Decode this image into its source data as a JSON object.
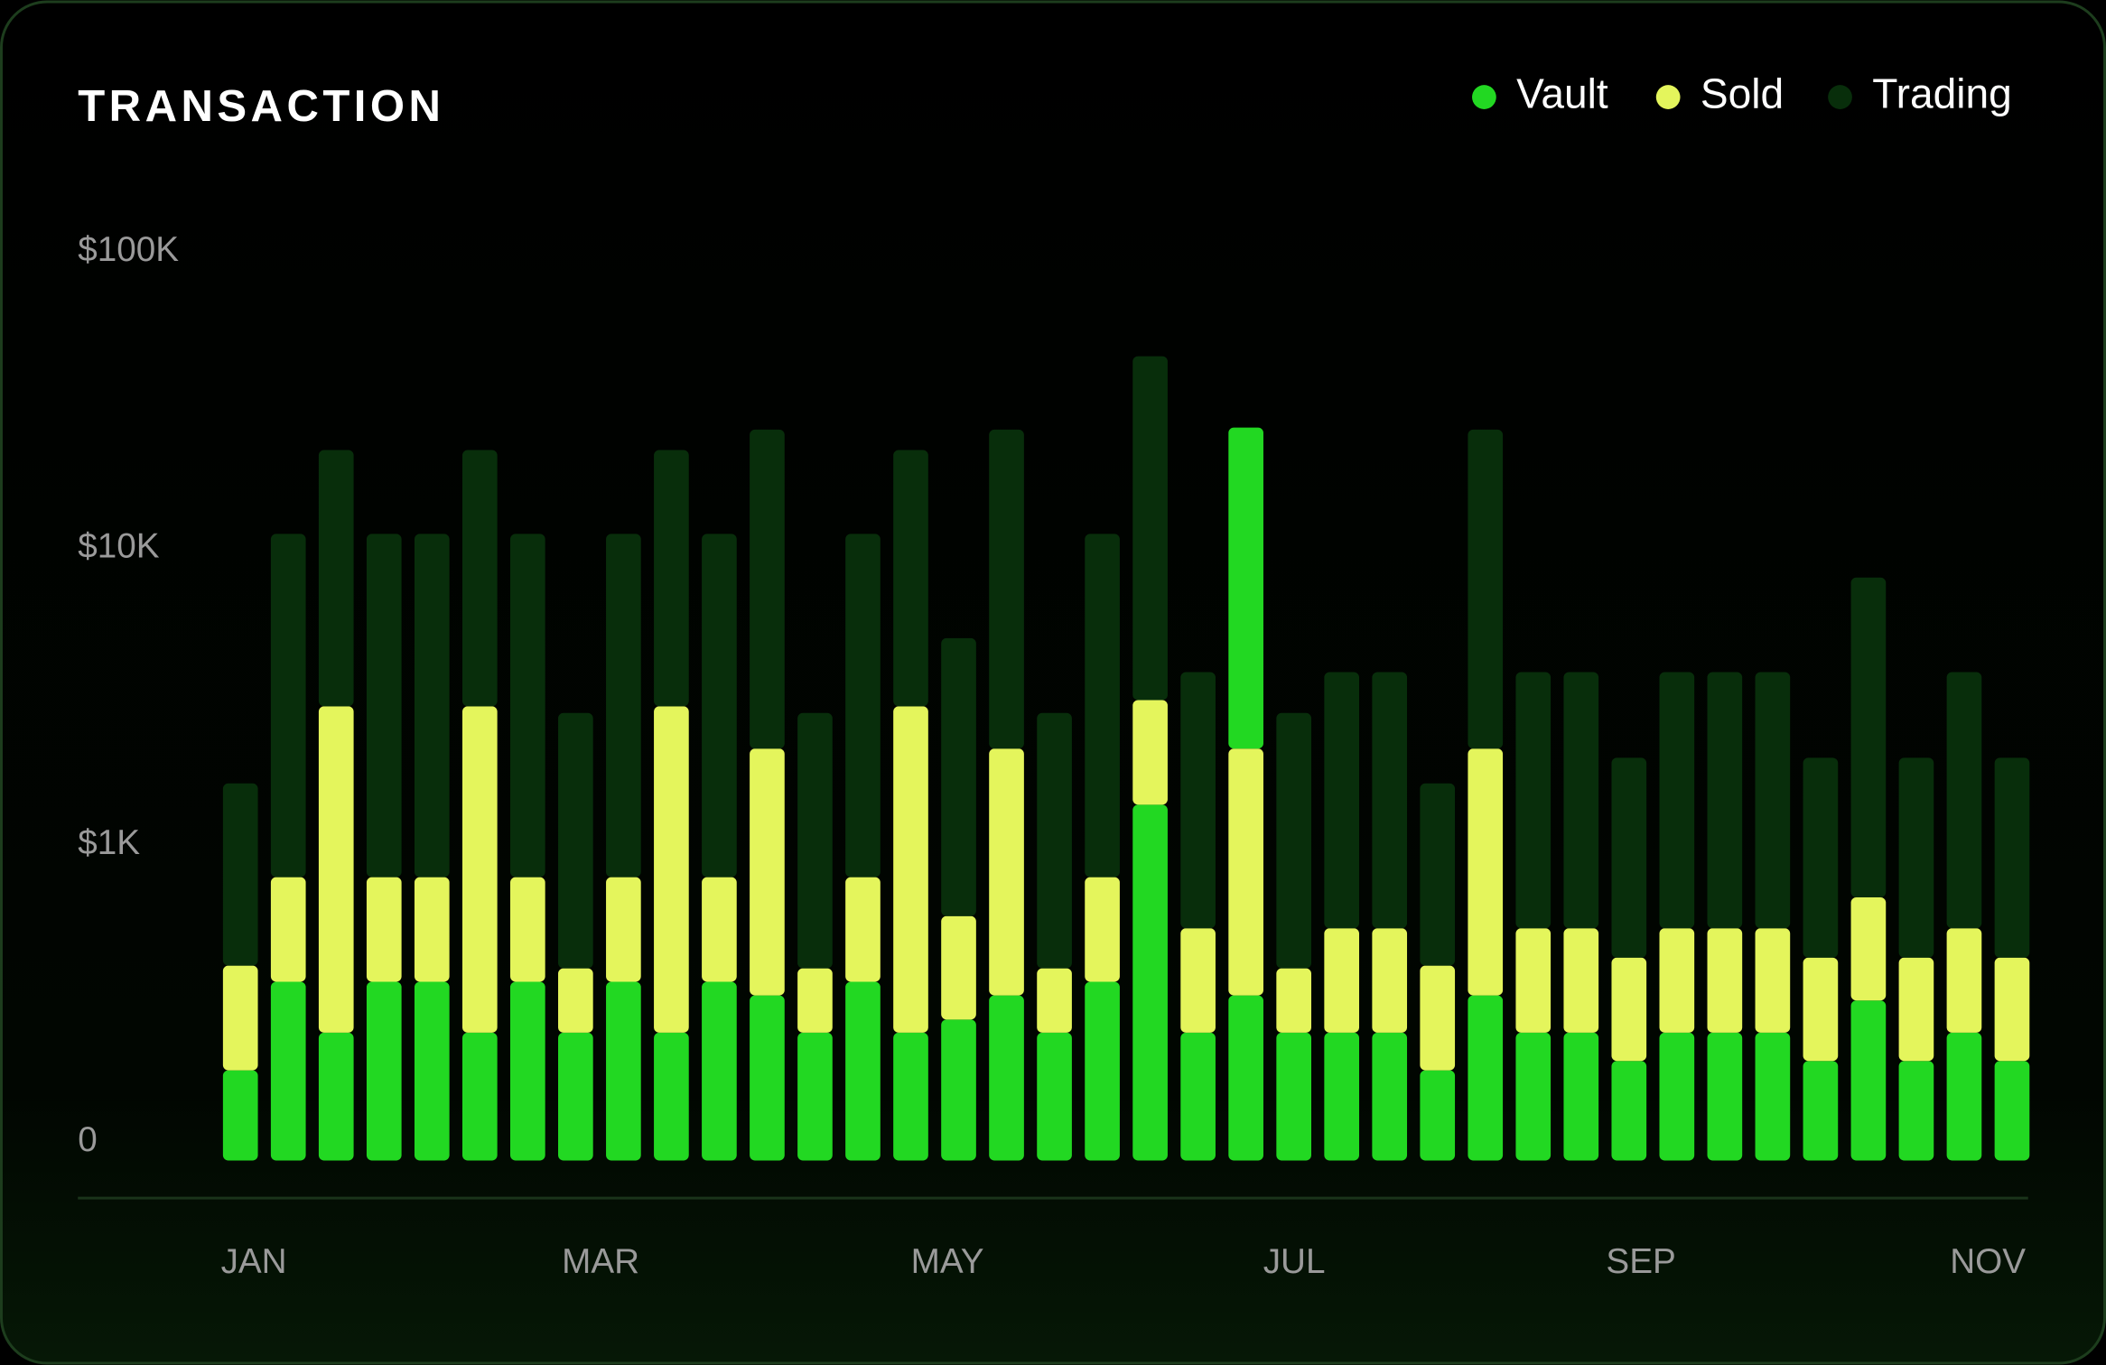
{
  "chart_data": {
    "type": "bar",
    "stacked": true,
    "title": "TRANSACTION",
    "log_scale": true,
    "ylim": [
      100,
      100000
    ],
    "yticks": [
      {
        "value": 0,
        "label": "0"
      },
      {
        "value": 1000,
        "label": "$1K"
      },
      {
        "value": 10000,
        "label": "$10K"
      },
      {
        "value": 100000,
        "label": "$100K"
      }
    ],
    "legend": "top-right",
    "highlight_index": 21,
    "x_labels": [
      "JAN",
      "MAR",
      "MAY",
      "JUL",
      "SEP",
      "NOV"
    ],
    "categories": [
      null,
      null,
      null,
      null,
      null,
      null,
      null,
      null,
      null,
      null,
      null,
      null,
      null,
      null,
      null,
      null,
      null,
      null,
      null,
      null,
      null,
      null,
      null,
      null,
      null,
      null,
      null,
      null,
      null,
      null,
      null,
      null,
      null,
      null,
      null,
      null,
      null,
      null
    ],
    "series": [
      {
        "name": "Vault",
        "color": "#22d822",
        "values": [
          174,
          346,
          233,
          346,
          346,
          233,
          346,
          233,
          346,
          233,
          346,
          311,
          233,
          346,
          233,
          258,
          311,
          233,
          346,
          1367,
          233,
          311,
          233,
          233,
          233,
          174,
          311,
          233,
          233,
          187,
          233,
          233,
          233,
          187,
          299,
          187,
          233,
          187
        ]
      },
      {
        "name": "Sold",
        "color": "#e4f55c",
        "values": [
          218,
          433,
          2700,
          433,
          433,
          2700,
          433,
          151,
          433,
          2700,
          433,
          1800,
          151,
          433,
          2700,
          318,
          1800,
          151,
          433,
          1710,
          291,
          1800,
          151,
          291,
          291,
          218,
          1800,
          291,
          291,
          230,
          291,
          291,
          291,
          230,
          367,
          230,
          291,
          230
        ]
      },
      {
        "name": "Trading",
        "color": "#082e0b",
        "values": [
          1220,
          10400,
          18500,
          10400,
          10400,
          18500,
          10400,
          2400,
          10400,
          18500,
          10400,
          23000,
          2400,
          10400,
          18500,
          4400,
          23000,
          2400,
          10400,
          41300,
          3300,
          23400,
          2400,
          3300,
          3300,
          1220,
          23000,
          3300,
          3300,
          1550,
          3300,
          3300,
          3300,
          1550,
          7300,
          1550,
          3300,
          1550
        ]
      }
    ]
  }
}
